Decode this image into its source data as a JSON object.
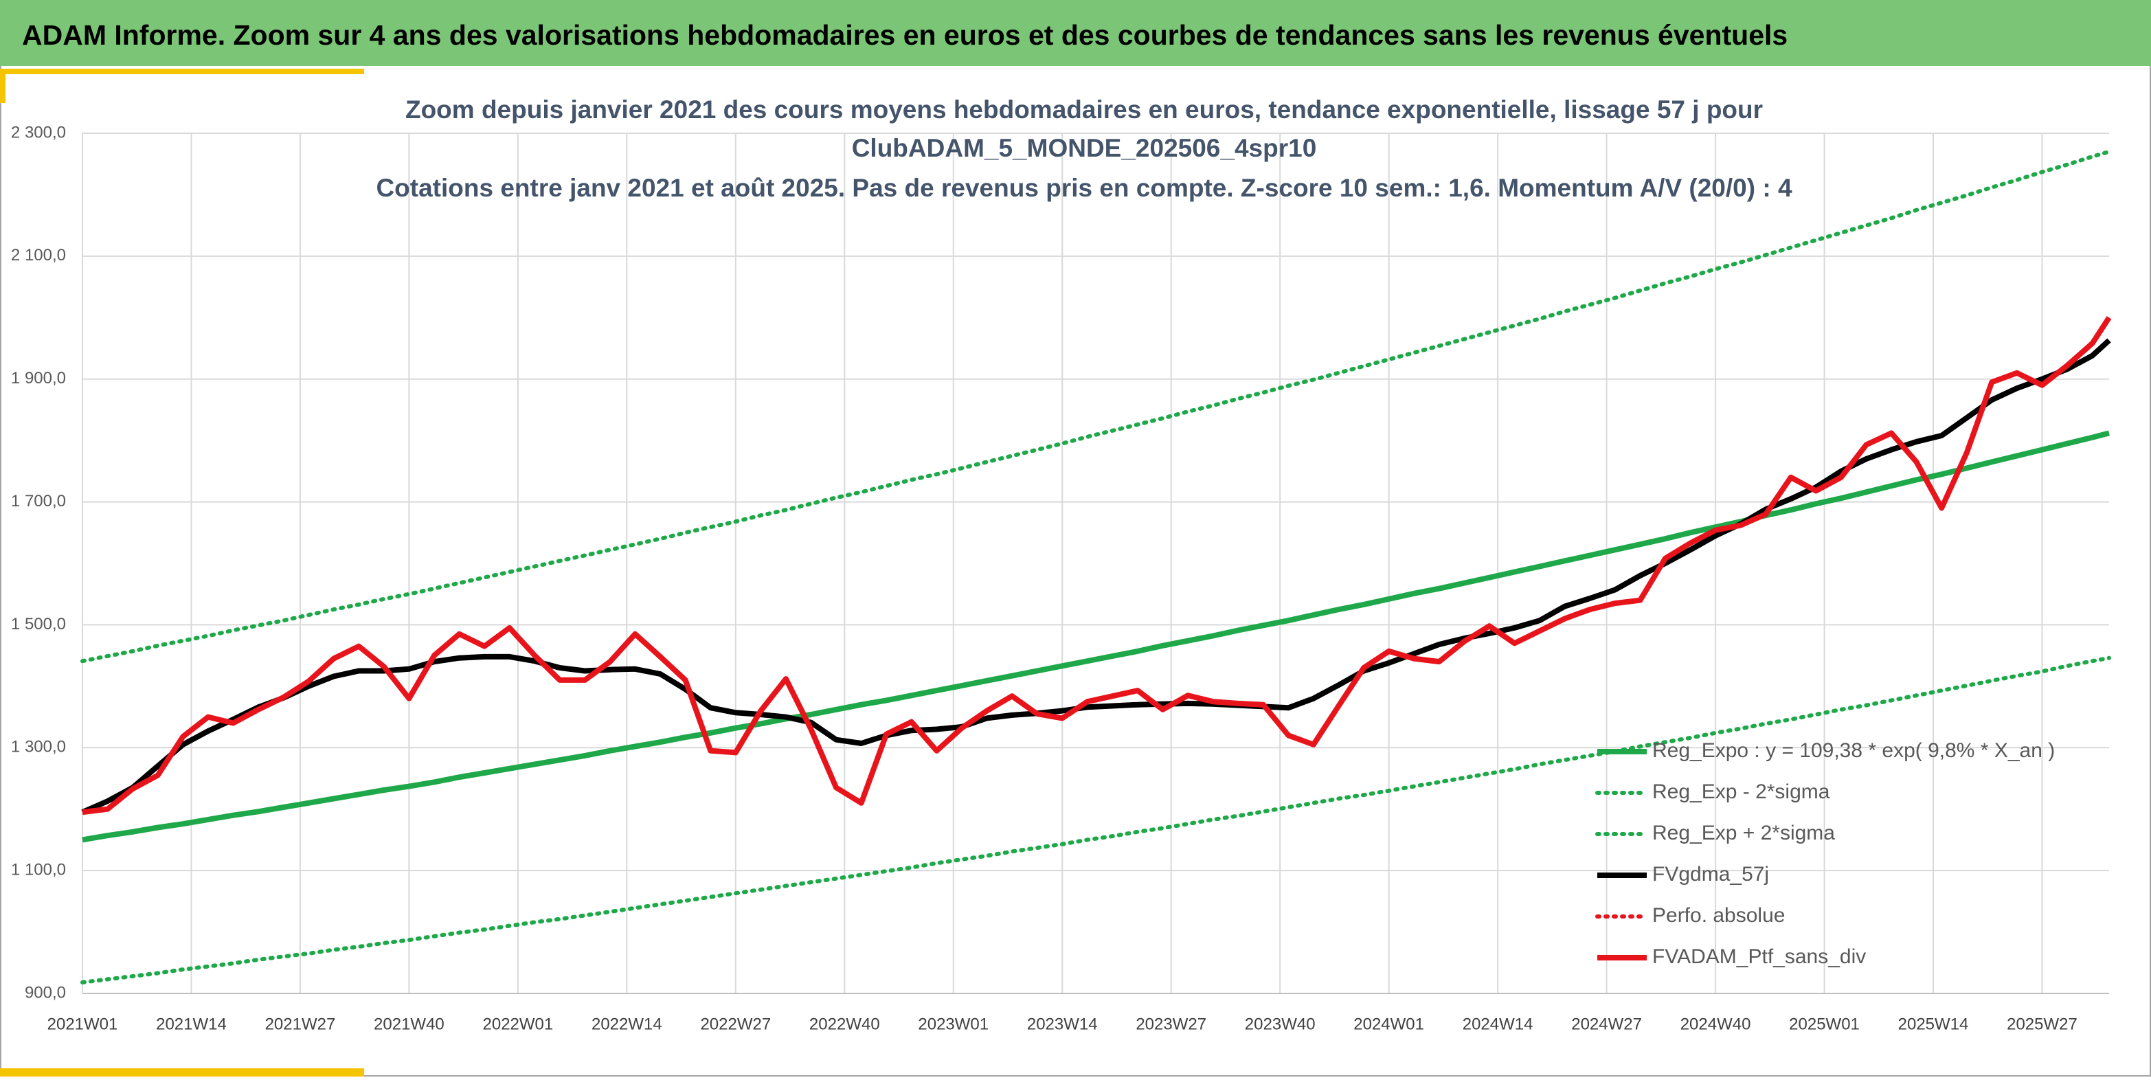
{
  "header": {
    "title": "ADAM Informe. Zoom sur 4 ans des valorisations hebdomadaires en euros et des courbes de tendances sans les revenus éventuels"
  },
  "chart_data": {
    "type": "line",
    "title": [
      "Zoom depuis janvier 2021 des cours moyens hebdomadaires en euros, tendance exponentielle, lissage 57 j pour",
      "ClubADAM_5_MONDE_202506_4spr10",
      "Cotations entre janv 2021 et août 2025. Pas de revenus pris en compte. Z-score 10 sem.: 1,6. Momentum A/V (20/0) : 4"
    ],
    "x": [
      0,
      3,
      6,
      9,
      12,
      15,
      18,
      21,
      24,
      27,
      30,
      33,
      36,
      39,
      42,
      45,
      48,
      51,
      54,
      57,
      60,
      63,
      66,
      69,
      72,
      75,
      78,
      81,
      84,
      87,
      90,
      93,
      96,
      99,
      102,
      105,
      108,
      111,
      114,
      117,
      120,
      123,
      126,
      129,
      132,
      135,
      138,
      141,
      144,
      147,
      150,
      153,
      156,
      159,
      162,
      165,
      168,
      171,
      174,
      177,
      180,
      183,
      186,
      189,
      192,
      195,
      198,
      201,
      204,
      207,
      210,
      213,
      216,
      219,
      222,
      225,
      228,
      231,
      234,
      237,
      240,
      242
    ],
    "xlim": [
      0,
      242
    ],
    "xticks": [
      {
        "value": 0,
        "label": "2021W01"
      },
      {
        "value": 13,
        "label": "2021W14"
      },
      {
        "value": 26,
        "label": "2021W27"
      },
      {
        "value": 39,
        "label": "2021W40"
      },
      {
        "value": 52,
        "label": "2022W01"
      },
      {
        "value": 65,
        "label": "2022W14"
      },
      {
        "value": 78,
        "label": "2022W27"
      },
      {
        "value": 91,
        "label": "2022W40"
      },
      {
        "value": 104,
        "label": "2023W01"
      },
      {
        "value": 117,
        "label": "2023W14"
      },
      {
        "value": 130,
        "label": "2023W27"
      },
      {
        "value": 143,
        "label": "2023W40"
      },
      {
        "value": 156,
        "label": "2024W01"
      },
      {
        "value": 169,
        "label": "2024W14"
      },
      {
        "value": 182,
        "label": "2024W27"
      },
      {
        "value": 195,
        "label": "2024W40"
      },
      {
        "value": 208,
        "label": "2025W01"
      },
      {
        "value": 221,
        "label": "2025W14"
      },
      {
        "value": 234,
        "label": "2025W27"
      }
    ],
    "ylim": [
      900,
      2300
    ],
    "yticks": [
      {
        "value": 900,
        "label": "900,0"
      },
      {
        "value": 1100,
        "label": "1 100,0"
      },
      {
        "value": 1300,
        "label": "1 300,0"
      },
      {
        "value": 1500,
        "label": "1 500,0"
      },
      {
        "value": 1700,
        "label": "1 700,0"
      },
      {
        "value": 1900,
        "label": "1 900,0"
      },
      {
        "value": 2100,
        "label": "2 100,0"
      },
      {
        "value": 2300,
        "label": "2 300,0"
      }
    ],
    "grid": true,
    "legend": "lower right",
    "series": [
      {
        "name": "Reg_Expo : y = 109,38 * exp( 9,8% *  X_an )",
        "color": "#1fa84a",
        "style": "solid",
        "values": [
          1150,
          1157,
          1163,
          1170,
          1176,
          1183,
          1190,
          1196,
          1203,
          1210,
          1217,
          1224,
          1231,
          1237,
          1244,
          1252,
          1259,
          1266,
          1273,
          1280,
          1287,
          1295,
          1302,
          1309,
          1317,
          1324,
          1332,
          1339,
          1347,
          1354,
          1362,
          1370,
          1377,
          1385,
          1393,
          1401,
          1409,
          1417,
          1425,
          1433,
          1441,
          1449,
          1457,
          1466,
          1474,
          1482,
          1491,
          1499,
          1507,
          1516,
          1525,
          1533,
          1542,
          1551,
          1559,
          1568,
          1577,
          1586,
          1595,
          1604,
          1613,
          1622,
          1631,
          1640,
          1650,
          1659,
          1668,
          1678,
          1687,
          1697,
          1706,
          1716,
          1726,
          1736,
          1745,
          1755,
          1765,
          1775,
          1785,
          1795,
          1805,
          1812
        ]
      },
      {
        "name": "Reg_Exp - 2*sigma",
        "color": "#1fa84a",
        "style": "dotted",
        "values": [
          918,
          923,
          928,
          933,
          939,
          944,
          949,
          955,
          960,
          965,
          971,
          976,
          982,
          987,
          993,
          999,
          1004,
          1010,
          1016,
          1021,
          1027,
          1033,
          1039,
          1045,
          1051,
          1057,
          1063,
          1069,
          1075,
          1081,
          1087,
          1093,
          1099,
          1105,
          1112,
          1118,
          1124,
          1131,
          1137,
          1143,
          1150,
          1156,
          1163,
          1169,
          1176,
          1183,
          1189,
          1196,
          1203,
          1210,
          1217,
          1223,
          1230,
          1237,
          1244,
          1251,
          1258,
          1265,
          1273,
          1280,
          1287,
          1294,
          1302,
          1309,
          1316,
          1324,
          1331,
          1339,
          1346,
          1354,
          1362,
          1369,
          1377,
          1385,
          1393,
          1401,
          1409,
          1417,
          1424,
          1433,
          1441,
          1446
        ]
      },
      {
        "name": "Reg_Exp + 2*sigma",
        "color": "#1fa84a",
        "style": "dotted",
        "values": [
          1441,
          1449,
          1457,
          1466,
          1474,
          1482,
          1491,
          1499,
          1507,
          1516,
          1525,
          1533,
          1542,
          1550,
          1559,
          1568,
          1577,
          1586,
          1595,
          1604,
          1613,
          1622,
          1631,
          1640,
          1650,
          1659,
          1668,
          1678,
          1687,
          1697,
          1707,
          1716,
          1726,
          1736,
          1745,
          1755,
          1765,
          1775,
          1785,
          1795,
          1806,
          1816,
          1826,
          1836,
          1847,
          1857,
          1868,
          1878,
          1889,
          1899,
          1910,
          1921,
          1932,
          1943,
          1954,
          1965,
          1976,
          1987,
          1998,
          2010,
          2021,
          2032,
          2044,
          2056,
          2067,
          2079,
          2090,
          2102,
          2114,
          2126,
          2138,
          2150,
          2162,
          2175,
          2187,
          2199,
          2212,
          2224,
          2237,
          2249,
          2262,
          2270
        ]
      },
      {
        "name": "FVgdma_57j",
        "color": "#000000",
        "style": "solid",
        "values": [
          1195,
          1213,
          1235,
          1270,
          1305,
          1327,
          1346,
          1366,
          1381,
          1400,
          1416,
          1425,
          1425,
          1428,
          1440,
          1446,
          1448,
          1448,
          1441,
          1430,
          1425,
          1427,
          1428,
          1420,
          1395,
          1365,
          1357,
          1354,
          1350,
          1341,
          1313,
          1307,
          1320,
          1328,
          1330,
          1334,
          1348,
          1353,
          1356,
          1360,
          1366,
          1368,
          1370,
          1371,
          1372,
          1371,
          1369,
          1367,
          1365,
          1380,
          1402,
          1425,
          1438,
          1453,
          1468,
          1478,
          1486,
          1495,
          1507,
          1530,
          1543,
          1557,
          1580,
          1600,
          1622,
          1645,
          1664,
          1688,
          1705,
          1724,
          1750,
          1770,
          1785,
          1798,
          1808,
          1837,
          1866,
          1885,
          1900,
          1916,
          1938,
          1963
        ]
      },
      {
        "name": "Perfo. absolue",
        "color": "#e8141b",
        "style": "dotted",
        "values": [
          null,
          null,
          null,
          null,
          null,
          null,
          null,
          null,
          null,
          null,
          null,
          null,
          null,
          null,
          null,
          null,
          null,
          null,
          null,
          null,
          null,
          null,
          null,
          null,
          null,
          null,
          null,
          null,
          null,
          null,
          null,
          null,
          null,
          null,
          null,
          null,
          null,
          null,
          null,
          null,
          null,
          null,
          null,
          null,
          null,
          null,
          null,
          null,
          null,
          null,
          null,
          null,
          null,
          null,
          null,
          null,
          null,
          null,
          null,
          null,
          null,
          null,
          null,
          null,
          null,
          null,
          null,
          null,
          null,
          null,
          null,
          null,
          null,
          null,
          null,
          null,
          null,
          null,
          null,
          null,
          null,
          null
        ]
      },
      {
        "name": "FVADAM_Ptf_sans_div",
        "color": "#e8141b",
        "style": "solid",
        "values": [
          1195,
          1200,
          1233,
          1255,
          1318,
          1350,
          1340,
          1362,
          1382,
          1408,
          1445,
          1465,
          1432,
          1380,
          1450,
          1485,
          1465,
          1495,
          1450,
          1410,
          1410,
          1440,
          1485,
          1448,
          1410,
          1295,
          1292,
          1360,
          1412,
          1330,
          1235,
          1210,
          1322,
          1342,
          1295,
          1332,
          1360,
          1384,
          1355,
          1348,
          1375,
          1384,
          1393,
          1362,
          1385,
          1375,
          1372,
          1370,
          1320,
          1305,
          1368,
          1430,
          1457,
          1445,
          1440,
          1473,
          1498,
          1470,
          1490,
          1510,
          1525,
          1535,
          1540,
          1608,
          1633,
          1654,
          1662,
          1680,
          1740,
          1718,
          1740,
          1793,
          1812,
          1765,
          1690,
          1780,
          1895,
          1910,
          1890,
          1922,
          1958,
          2000
        ]
      }
    ]
  }
}
